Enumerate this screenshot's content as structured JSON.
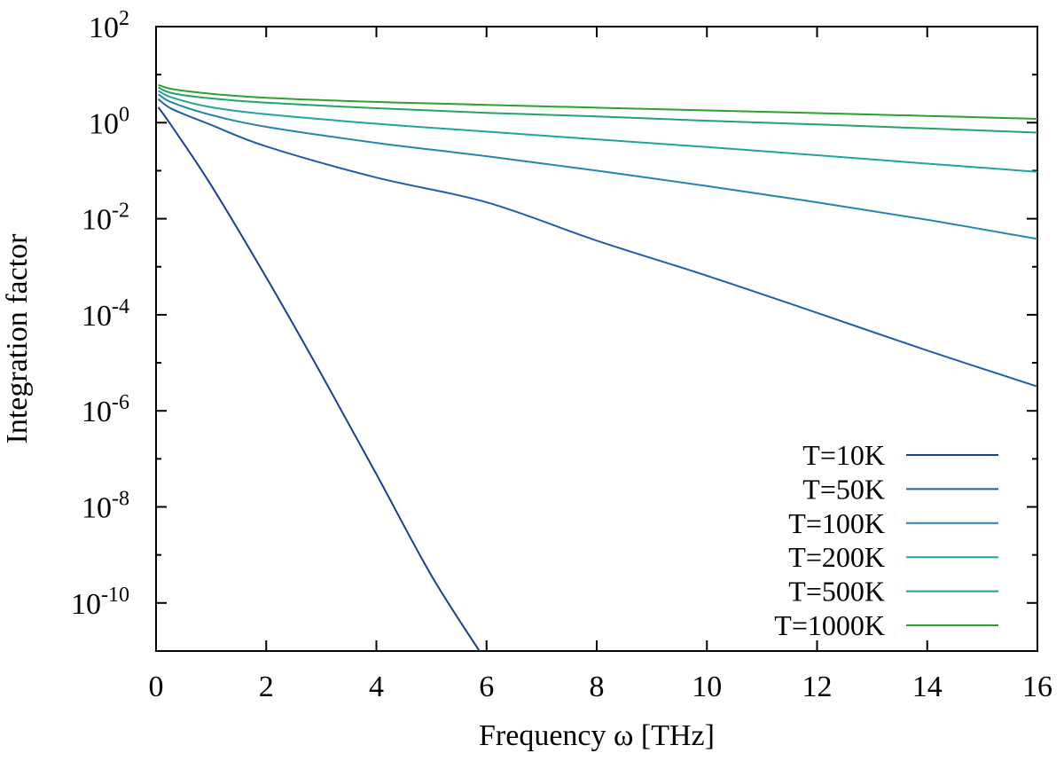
{
  "chart_data": {
    "type": "line",
    "title": "",
    "xlabel": "Frequency ω [THz]",
    "ylabel": "Integration factor",
    "xlim": [
      0,
      16
    ],
    "ylim_log10": [
      -11,
      2
    ],
    "yscale": "log",
    "grid": false,
    "legend_position": "bottom-right",
    "x_ticks": [
      {
        "value": 0,
        "label": "0"
      },
      {
        "value": 2,
        "label": "2"
      },
      {
        "value": 4,
        "label": "4"
      },
      {
        "value": 6,
        "label": "6"
      },
      {
        "value": 8,
        "label": "8"
      },
      {
        "value": 10,
        "label": "10"
      },
      {
        "value": 12,
        "label": "12"
      },
      {
        "value": 14,
        "label": "14"
      },
      {
        "value": 16,
        "label": "16"
      }
    ],
    "y_ticks": [
      {
        "value": 2,
        "base": "10",
        "exp": "2"
      },
      {
        "value": 0,
        "base": "10",
        "exp": "0"
      },
      {
        "value": -2,
        "base": "10",
        "exp": "-2"
      },
      {
        "value": -4,
        "base": "10",
        "exp": "-4"
      },
      {
        "value": -6,
        "base": "10",
        "exp": "-6"
      },
      {
        "value": -8,
        "base": "10",
        "exp": "-8"
      },
      {
        "value": -10,
        "base": "10",
        "exp": "-10"
      }
    ],
    "series": [
      {
        "name": "T=10K",
        "color": "#1a3e96",
        "x": [
          0.04,
          0.3,
          1,
          2,
          3,
          4,
          5,
          5.9
        ],
        "y": [
          2.1,
          0.8,
          0.05,
          0.0006,
          5.8e-06,
          4.8e-08,
          3.7e-10,
          8.9e-12
        ]
      },
      {
        "name": "T=50K",
        "color": "#1f5ea8",
        "x": [
          0.04,
          0.3,
          1,
          2,
          4,
          6,
          8,
          10,
          12,
          14,
          16
        ],
        "y": [
          3.1,
          1.9,
          0.9,
          0.32,
          0.072,
          0.022,
          0.0035,
          0.00065,
          0.00011,
          1.8e-05,
          3.2e-06
        ]
      },
      {
        "name": "T=100K",
        "color": "#2286ad",
        "x": [
          0.04,
          0.3,
          1,
          2,
          4,
          6,
          8,
          10,
          12,
          14,
          16
        ],
        "y": [
          3.9,
          2.6,
          1.45,
          0.82,
          0.38,
          0.2,
          0.1,
          0.048,
          0.022,
          0.0095,
          0.0038
        ]
      },
      {
        "name": "T=200K",
        "color": "#21a3a0",
        "x": [
          0.04,
          0.3,
          1,
          2,
          4,
          6,
          8,
          10,
          12,
          14,
          16
        ],
        "y": [
          4.6,
          3.3,
          2.1,
          1.5,
          0.95,
          0.65,
          0.45,
          0.31,
          0.21,
          0.14,
          0.095
        ]
      },
      {
        "name": "T=500K",
        "color": "#22a367",
        "x": [
          0.04,
          0.3,
          1,
          2,
          4,
          6,
          8,
          10,
          12,
          14,
          16
        ],
        "y": [
          5.4,
          4.1,
          3.2,
          2.6,
          2.0,
          1.6,
          1.35,
          1.1,
          0.92,
          0.76,
          0.62
        ]
      },
      {
        "name": "T=1000K",
        "color": "#2ba22a",
        "x": [
          0.04,
          0.3,
          1,
          2,
          4,
          6,
          8,
          10,
          12,
          14,
          16
        ],
        "y": [
          6.1,
          5.0,
          4.0,
          3.3,
          2.7,
          2.35,
          2.05,
          1.8,
          1.58,
          1.38,
          1.2
        ]
      }
    ]
  }
}
